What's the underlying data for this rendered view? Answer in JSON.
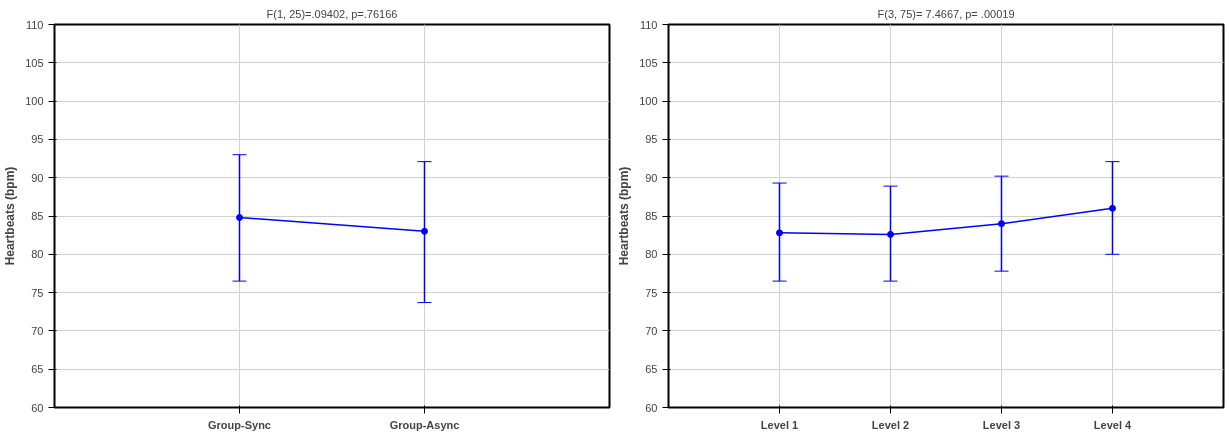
{
  "chart_data": [
    {
      "type": "line",
      "title": "F(1, 25)=.09402, p=.76166",
      "ylabel": "Heartbeats (bpm)",
      "categories": [
        "Group-Sync",
        "Group-Async"
      ],
      "series": [
        {
          "color": "#0000ff",
          "values": [
            84.8,
            83.0
          ],
          "errors": [
            [
              76.5,
              93.0
            ],
            [
              73.7,
              92.1
            ]
          ]
        }
      ],
      "ylim": [
        60,
        110
      ],
      "yticks": [
        60,
        65,
        70,
        75,
        80,
        85,
        90,
        95,
        100,
        105,
        110
      ],
      "grid": true,
      "marker": "circle",
      "line_style": "solid"
    },
    {
      "type": "line",
      "title": "F(3, 75)= 7.4667, p= .00019",
      "ylabel": "Heartbeats (bpm)",
      "categories": [
        "Level 1",
        "Level 2",
        "Level 3",
        "Level 4"
      ],
      "series": [
        {
          "color": "#0000ff",
          "values": [
            82.8,
            82.6,
            84.0,
            86.0
          ],
          "errors": [
            [
              76.5,
              89.3
            ],
            [
              76.5,
              88.9
            ],
            [
              77.8,
              90.2
            ],
            [
              80.0,
              92.1
            ]
          ]
        }
      ],
      "ylim": [
        60,
        110
      ],
      "yticks": [
        60,
        65,
        70,
        75,
        80,
        85,
        90,
        95,
        100,
        105,
        110
      ],
      "grid": true,
      "marker": "circle",
      "line_style": "solid"
    }
  ]
}
